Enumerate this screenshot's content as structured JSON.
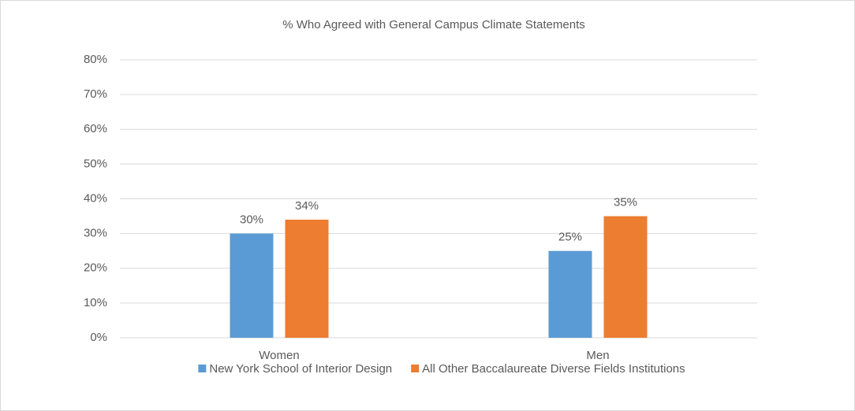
{
  "chart_data": {
    "type": "bar",
    "title": "% Who Agreed with General Campus Climate Statements",
    "categories": [
      "Women",
      "Men"
    ],
    "series": [
      {
        "name": "New York School of Interior Design",
        "color": "#5b9bd5",
        "values": [
          30,
          25
        ],
        "value_labels": [
          "30%",
          "25%"
        ]
      },
      {
        "name": "All Other Baccalaureate Diverse Fields Institutions",
        "color": "#ed7d31",
        "values": [
          34,
          35
        ],
        "value_labels": [
          "34%",
          "35%"
        ]
      }
    ],
    "ylim": [
      0,
      80
    ],
    "yticks": [
      {
        "value": 0,
        "label": "0%"
      },
      {
        "value": 10,
        "label": "10%"
      },
      {
        "value": 20,
        "label": "20%"
      },
      {
        "value": 30,
        "label": "30%"
      },
      {
        "value": 40,
        "label": "40%"
      },
      {
        "value": 50,
        "label": "50%"
      },
      {
        "value": 60,
        "label": "60%"
      },
      {
        "value": 70,
        "label": "70%"
      },
      {
        "value": 80,
        "label": "80%"
      }
    ],
    "grid": true,
    "legend": "bottom"
  }
}
